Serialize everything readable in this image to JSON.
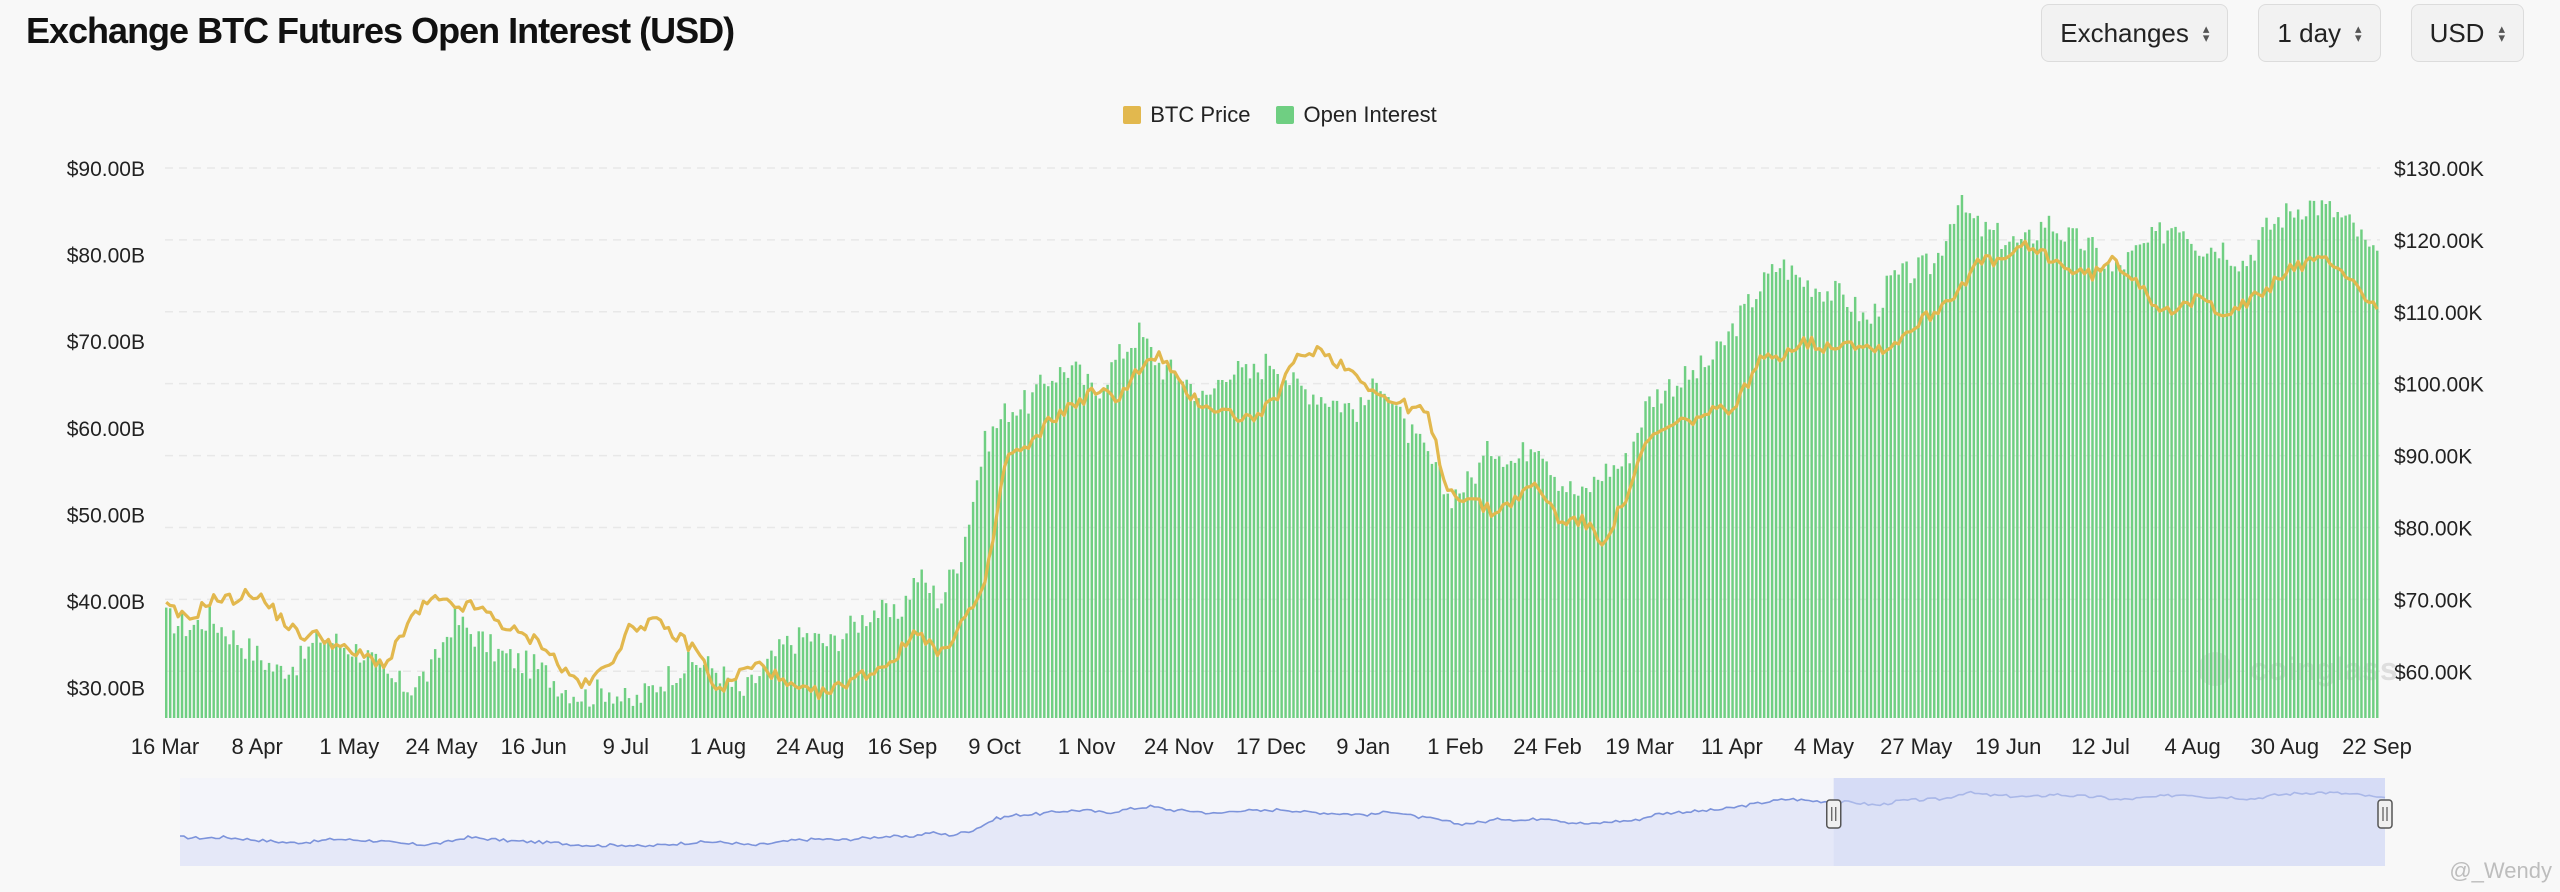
{
  "header": {
    "title": "Exchange BTC Futures Open Interest (USD)"
  },
  "controls": [
    {
      "label": "Exchanges",
      "name": "exchanges-select"
    },
    {
      "label": "1 day",
      "name": "interval-select"
    },
    {
      "label": "USD",
      "name": "currency-select"
    }
  ],
  "colors": {
    "price": "#e2b84e",
    "oi": "#6fcf82",
    "navigator_line": "#7c93db",
    "navigator_fill": "#e3e7f7",
    "navigator_selection": "#d6dcf6"
  },
  "watermark": {
    "brand": "coinglass",
    "user": "@_Wendy"
  },
  "chart_data": {
    "type": "bar+line",
    "x_labels": [
      "16 Mar",
      "8 Apr",
      "1 May",
      "24 May",
      "16 Jun",
      "9 Jul",
      "1 Aug",
      "24 Aug",
      "16 Sep",
      "9 Oct",
      "1 Nov",
      "24 Nov",
      "17 Dec",
      "9 Jan",
      "1 Feb",
      "24 Feb",
      "19 Mar",
      "11 Apr",
      "4 May",
      "27 May",
      "19 Jun",
      "12 Jul",
      "4 Aug",
      "30 Aug",
      "22 Sep"
    ],
    "y_left_ticks": [
      "$30.00B",
      "$40.00B",
      "$50.00B",
      "$60.00B",
      "$70.00B",
      "$80.00B",
      "$90.00B"
    ],
    "y_left_range": [
      26.5,
      90
    ],
    "y_right_ticks": [
      "$60.00K",
      "$70.00K",
      "$80.00K",
      "$90.00K",
      "$100.00K",
      "$110.00K",
      "$120.00K",
      "$130.00K"
    ],
    "y_right_range": [
      53.5,
      130
    ],
    "series": [
      {
        "name": "Open Interest",
        "kind": "bar",
        "axis": "left",
        "unit": "USD B",
        "anchors": [
          38,
          37,
          38,
          36,
          34,
          32,
          33,
          36,
          35,
          34,
          31,
          30,
          32,
          38,
          36,
          34,
          33,
          32,
          30,
          29,
          30,
          28,
          30,
          32,
          33,
          32,
          29,
          32,
          35,
          36,
          35,
          37,
          39,
          38,
          43,
          40,
          46,
          58,
          62,
          63,
          66,
          67,
          64,
          68,
          71,
          67,
          66,
          63,
          67,
          66,
          68,
          65,
          64,
          63,
          62,
          66,
          60,
          57,
          52,
          54,
          58,
          56,
          59,
          54,
          52,
          55,
          56,
          63,
          65,
          66,
          68,
          72,
          76,
          79,
          77,
          76,
          75,
          72,
          77,
          78,
          79,
          86,
          83,
          82,
          81,
          84,
          82,
          81,
          78,
          80,
          82,
          84,
          81,
          81,
          79,
          83,
          85,
          86,
          85,
          83,
          79
        ]
      },
      {
        "name": "BTC Price",
        "kind": "line",
        "axis": "right",
        "unit": "USD K",
        "anchors": [
          69,
          67,
          70,
          70,
          71,
          68,
          65,
          65,
          63,
          62,
          61,
          67,
          70,
          69,
          69,
          67,
          65,
          64,
          60,
          58,
          61,
          66,
          67,
          65,
          63,
          57,
          60,
          61,
          58,
          57,
          57,
          59,
          60,
          62,
          66,
          62,
          67,
          71,
          90,
          91,
          95,
          97,
          99,
          98,
          102,
          104,
          99,
          97,
          96,
          95,
          97,
          103,
          105,
          103,
          101,
          98,
          97,
          96,
          85,
          84,
          82,
          84,
          86,
          81,
          81,
          78,
          84,
          92,
          94,
          95,
          96,
          97,
          103,
          104,
          106,
          105,
          106,
          105,
          105,
          108,
          110,
          113,
          117,
          117,
          119,
          118,
          116,
          115,
          117,
          115,
          111,
          110,
          112,
          110,
          111,
          113,
          116,
          117,
          117,
          114,
          110
        ]
      }
    ],
    "grid": true,
    "legend": "top-center",
    "navigator": {
      "selection_start": "4 May",
      "selection_end": "22 Sep"
    }
  }
}
